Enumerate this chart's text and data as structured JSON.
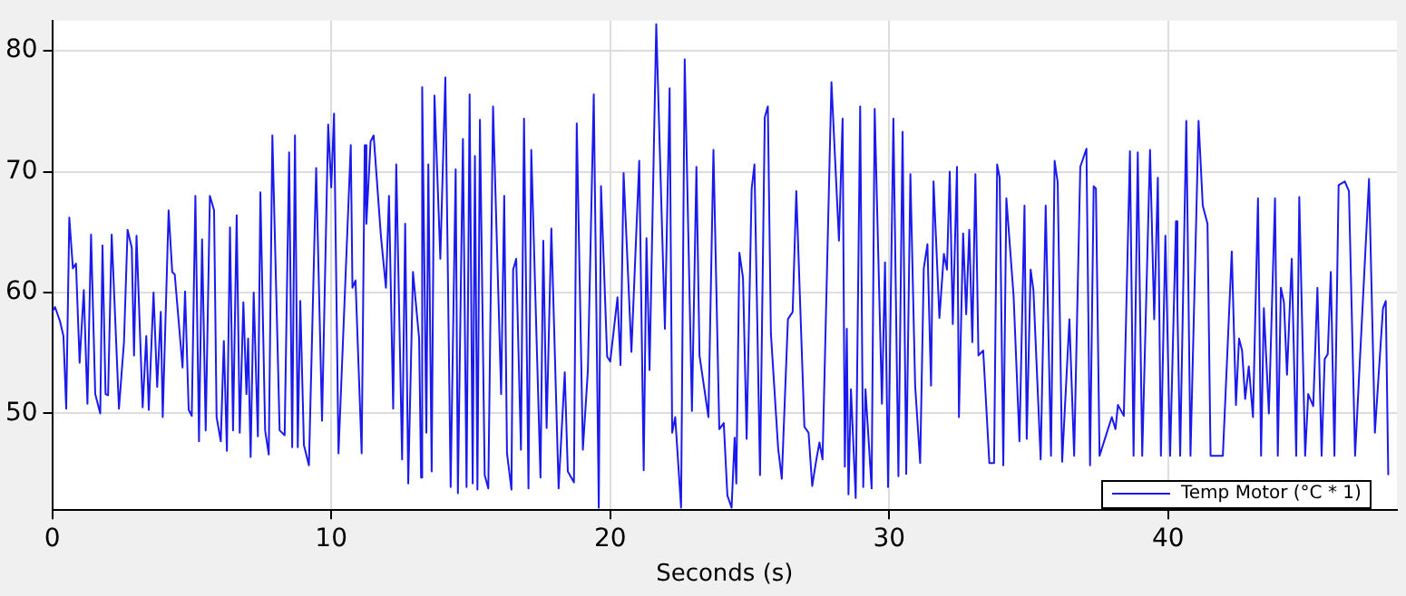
{
  "chart_data": {
    "type": "line",
    "xlabel": "Seconds (s)",
    "xlim": [
      0,
      48.2
    ],
    "xticks": [
      0,
      10,
      20,
      30,
      40
    ],
    "ylim": [
      42,
      82.5
    ],
    "yticks": [
      50,
      60,
      70,
      80
    ],
    "grid": true,
    "legend": "bottom right",
    "marker": "none",
    "line_style": "solid",
    "x": [
      0,
      0.1,
      0.28,
      0.4,
      0.5,
      0.61,
      0.74,
      0.85,
      0.98,
      1.13,
      1.26,
      1.39,
      1.54,
      1.72,
      1.8,
      1.91,
      2.0,
      2.13,
      2.39,
      2.57,
      2.7,
      2.85,
      2.93,
      3.02,
      3.24,
      3.37,
      3.46,
      3.63,
      3.76,
      3.89,
      3.96,
      4.17,
      4.3,
      4.39,
      4.67,
      4.76,
      4.89,
      5.0,
      5.13,
      5.26,
      5.37,
      5.5,
      5.65,
      5.8,
      5.89,
      6.04,
      6.15,
      6.26,
      6.37,
      6.48,
      6.61,
      6.72,
      6.85,
      6.96,
      7.02,
      7.11,
      7.22,
      7.37,
      7.46,
      7.63,
      7.76,
      7.89,
      8.15,
      8.33,
      8.49,
      8.6,
      8.7,
      8.8,
      8.89,
      9.02,
      9.2,
      9.46,
      9.67,
      9.89,
      10.0,
      10.1,
      10.26,
      10.7,
      10.76,
      10.87,
      11.09,
      11.2,
      11.26,
      11.41,
      11.52,
      11.78,
      11.96,
      12.07,
      12.22,
      12.33,
      12.54,
      12.65,
      12.76,
      12.93,
      13.15,
      13.22,
      13.26,
      13.41,
      13.48,
      13.6,
      13.7,
      13.91,
      14.09,
      14.28,
      14.46,
      14.54,
      14.72,
      14.85,
      14.96,
      15.07,
      15.15,
      15.24,
      15.33,
      15.5,
      15.63,
      15.8,
      16.09,
      16.2,
      16.3,
      16.46,
      16.52,
      16.63,
      16.8,
      16.91,
      17.07,
      17.17,
      17.5,
      17.6,
      17.72,
      17.89,
      18.15,
      18.37,
      18.48,
      18.7,
      18.8,
      19.02,
      19.2,
      19.41,
      19.59,
      19.67,
      19.89,
      20.0,
      20.26,
      20.37,
      20.48,
      20.76,
      21.04,
      21.2,
      21.3,
      21.41,
      21.65,
      21.96,
      22.13,
      22.22,
      22.33,
      22.54,
      22.67,
      22.93,
      23.09,
      23.2,
      23.52,
      23.7,
      23.91,
      24.07,
      24.2,
      24.35,
      24.46,
      24.52,
      24.63,
      24.76,
      24.89,
      25.07,
      25.17,
      25.37,
      25.54,
      25.65,
      25.76,
      26.02,
      26.15,
      26.37,
      26.54,
      26.67,
      26.96,
      27.11,
      27.24,
      27.39,
      27.5,
      27.61,
      27.93,
      28.2,
      28.33,
      28.41,
      28.48,
      28.54,
      28.63,
      28.8,
      28.96,
      29.07,
      29.15,
      29.37,
      29.48,
      29.74,
      29.85,
      29.96,
      30.15,
      30.33,
      30.48,
      30.61,
      30.76,
      30.93,
      31.11,
      31.24,
      31.37,
      31.5,
      31.59,
      31.8,
      31.96,
      32.07,
      32.17,
      32.28,
      32.43,
      32.5,
      32.65,
      32.76,
      32.87,
      32.98,
      33.09,
      33.2,
      33.37,
      33.59,
      33.76,
      33.87,
      33.96,
      34.09,
      34.2,
      34.46,
      34.67,
      34.85,
      34.93,
      35.07,
      35.17,
      35.43,
      35.61,
      35.8,
      35.93,
      36.04,
      36.2,
      36.46,
      36.63,
      36.85,
      37.07,
      37.2,
      37.33,
      37.41,
      37.54,
      37.98,
      38.11,
      38.2,
      38.41,
      38.63,
      38.76,
      38.91,
      39.07,
      39.35,
      39.5,
      39.63,
      39.74,
      39.9,
      40.07,
      40.28,
      40.33,
      40.43,
      40.65,
      40.8,
      41.09,
      41.24,
      41.41,
      41.52,
      41.96,
      42.28,
      42.43,
      42.54,
      42.65,
      42.76,
      42.89,
      43.04,
      43.22,
      43.33,
      43.43,
      43.61,
      43.83,
      43.93,
      44.04,
      44.15,
      44.26,
      44.43,
      44.59,
      44.7,
      44.91,
      45.02,
      45.2,
      45.35,
      45.5,
      45.61,
      45.72,
      45.83,
      45.96,
      46.11,
      46.33,
      46.48,
      46.7,
      47.2,
      47.41,
      47.7,
      47.8,
      47.89
    ],
    "series": [
      {
        "name": "Temp Motor (°C * 1)",
        "color": "#1a1aee",
        "values": [
          58.4,
          58.8,
          57.6,
          56.4,
          50.4,
          66.2,
          62,
          62.4,
          54.2,
          60.2,
          50.8,
          64.8,
          51.6,
          50,
          63.9,
          51.6,
          51.5,
          64.8,
          50.4,
          55.9,
          65.2,
          63.7,
          54.8,
          64.7,
          50.5,
          56.4,
          50.3,
          60,
          52.2,
          58.4,
          49.7,
          66.8,
          61.7,
          61.5,
          53.8,
          60.1,
          50.3,
          49.8,
          68,
          47.7,
          64.4,
          48.6,
          68,
          66.8,
          49.7,
          47.7,
          56,
          46.9,
          65.4,
          48.6,
          66.4,
          48.4,
          59.2,
          51.6,
          56.2,
          46.4,
          60,
          48.1,
          68.3,
          48.6,
          46.6,
          73,
          48.6,
          48.2,
          71.6,
          47.2,
          73,
          47.2,
          59.3,
          47.4,
          45.7,
          70.3,
          49.4,
          73.9,
          68.7,
          74.8,
          46.7,
          72.2,
          60.4,
          61,
          46.7,
          72.2,
          65.7,
          72.5,
          73,
          64.7,
          60.4,
          68,
          50.4,
          70.6,
          46.2,
          65.7,
          44.2,
          61.7,
          56.2,
          44.7,
          77,
          48.4,
          70.6,
          45.2,
          76.3,
          62.8,
          77.8,
          43.9,
          70.2,
          43.4,
          72.7,
          43.9,
          76.4,
          44.2,
          71.3,
          43.7,
          74.3,
          44.9,
          43.8,
          75.4,
          51.6,
          68,
          46.7,
          43.7,
          61.9,
          62.8,
          47,
          74.4,
          43.8,
          71.8,
          44.7,
          64.3,
          48.8,
          65.3,
          43.8,
          53.4,
          45.2,
          44.3,
          74,
          47,
          53.6,
          76.4,
          42.2,
          68.8,
          54.7,
          54.3,
          59.6,
          54,
          69.9,
          55.1,
          70.9,
          45.3,
          64.5,
          53.6,
          82.2,
          57,
          76.9,
          48.4,
          49.7,
          42.2,
          79.3,
          50.2,
          70.4,
          54.8,
          49.7,
          71.8,
          48.7,
          49.2,
          43.2,
          42.2,
          48,
          44.2,
          63.3,
          61.2,
          47.9,
          68.6,
          70.6,
          44.9,
          74.5,
          75.4,
          56.6,
          47.1,
          44.6,
          57.8,
          58.4,
          68.4,
          48.9,
          48.4,
          44,
          46.2,
          47.6,
          46.2,
          77.4,
          64.3,
          74.4,
          45.6,
          57,
          43.3,
          52,
          43,
          75.4,
          43.9,
          52,
          43.8,
          75.2,
          50.8,
          62.5,
          43.9,
          74.4,
          44.8,
          73.3,
          45,
          69.8,
          52.3,
          45.9,
          62,
          64,
          52.3,
          69.2,
          57.9,
          63.2,
          61.9,
          70,
          57.4,
          70.4,
          49.7,
          64.9,
          58.2,
          65.2,
          55.9,
          69.8,
          54.8,
          55.2,
          45.9,
          45.9,
          70.6,
          69.5,
          45.7,
          67.8,
          59.7,
          47.7,
          67.2,
          47.9,
          61.9,
          60.2,
          46.2,
          67.2,
          46.5,
          70.9,
          69.1,
          46,
          57.8,
          46.5,
          70.4,
          71.9,
          45.7,
          68.8,
          68.6,
          46.5,
          49.7,
          48.7,
          50.7,
          49.8,
          71.7,
          46.5,
          71.6,
          46.5,
          71.8,
          57.8,
          69.5,
          46.5,
          64.7,
          46.5,
          65.9,
          58.9,
          46.5,
          74.2,
          46.5,
          74.2,
          67.2,
          65.7,
          46.5,
          46.5,
          63.4,
          50.7,
          56.2,
          55.2,
          51.2,
          53.9,
          49.7,
          67.8,
          46.5,
          58.7,
          50,
          67.8,
          46.5,
          60.4,
          59.2,
          53.2,
          62.8,
          46.5,
          67.9,
          46.5,
          51.6,
          50.6,
          60.4,
          46.5,
          54.5,
          54.9,
          61.7,
          46.5,
          68.9,
          69.2,
          68.4,
          46.5,
          69.4,
          48.4,
          58.7,
          59.3,
          44.9
        ]
      }
    ]
  }
}
